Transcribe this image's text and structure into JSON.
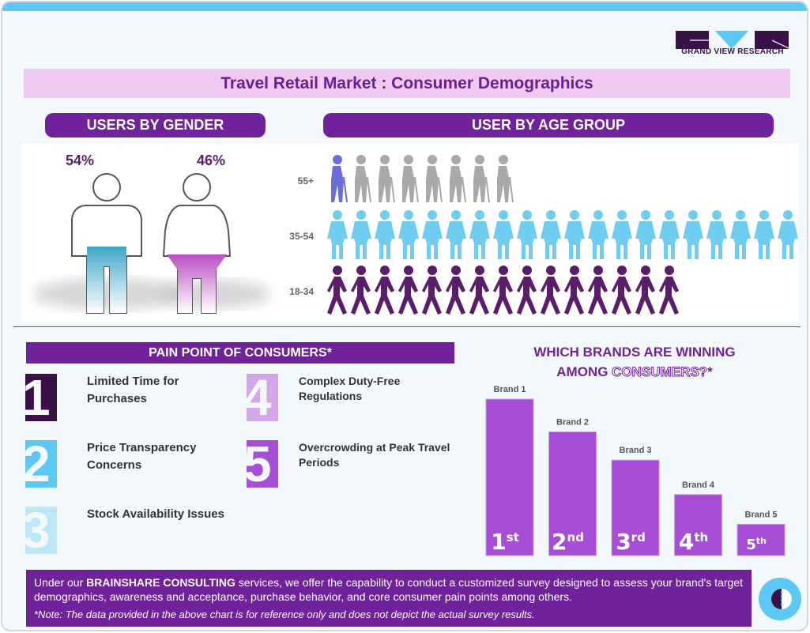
{
  "brand": {
    "logo_text": "GRAND VIEW RESEARCH"
  },
  "title": "Travel Retail Market : Consumer Demographics",
  "gender": {
    "header": "USERS BY GENDER",
    "male_pct": "54%",
    "female_pct": "46%",
    "male_color": "#3fa7c9",
    "female_color": "#b84fc1"
  },
  "age": {
    "header": "USER BY AGE GROUP",
    "groups": [
      {
        "label": "55+",
        "icon": "elderly-person-icon",
        "count": 8,
        "color": "#a9a9a9",
        "highlight": "#6b6ed8"
      },
      {
        "label": "35-54",
        "icon": "adult-person-icon",
        "count": 20,
        "color": "#6fcdf2"
      },
      {
        "label": "18-34",
        "icon": "walking-person-icon",
        "count": 15,
        "color": "#5a1d6a"
      }
    ]
  },
  "pain_points": {
    "header": "PAIN POINT OF CONSUMERS*",
    "items": [
      {
        "num": "1",
        "text": "Limited Time for Purchases",
        "color": "#3a1048"
      },
      {
        "num": "2",
        "text": "Price Transparency Concerns",
        "color": "#5bc8f5"
      },
      {
        "num": "3",
        "text": "Stock Availability Issues",
        "color": "#bde6f8"
      },
      {
        "num": "4",
        "text": "Complex Duty-Free Regulations",
        "color": "#d3a8e8"
      },
      {
        "num": "5",
        "text": "Overcrowding at Peak Travel Periods",
        "color": "#a64fd6"
      }
    ]
  },
  "chart_data": {
    "type": "bar",
    "title_line1": "WHICH BRANDS ARE WINNING",
    "title_line2a": "AMONG ",
    "title_line2b": "CONSUMERS?",
    "title_line2c": "*",
    "categories": [
      "Brand 1",
      "Brand 2",
      "Brand 3",
      "Brand 4",
      "Brand 5"
    ],
    "values": [
      100,
      79,
      61,
      39,
      20
    ],
    "rank_labels": [
      {
        "n": "1",
        "sup": "st"
      },
      {
        "n": "2",
        "sup": "nd"
      },
      {
        "n": "3",
        "sup": "rd"
      },
      {
        "n": "4",
        "sup": "th"
      },
      {
        "n": "5",
        "sup": "th"
      }
    ],
    "color": "#a64fd6",
    "grid": false,
    "axes_visible": false
  },
  "footer": {
    "text_pre": "Under our ",
    "text_bold": "BRAINSHARE CONSULTING",
    "text_post": " services, we offer the capability to conduct a customized survey designed to assess your brand's target demographics, awareness and acceptance, purchase behavior, and core consumer pain points among others.",
    "note": "*Note: The data provided in the above chart is for reference only and does not depict the actual survey results."
  }
}
